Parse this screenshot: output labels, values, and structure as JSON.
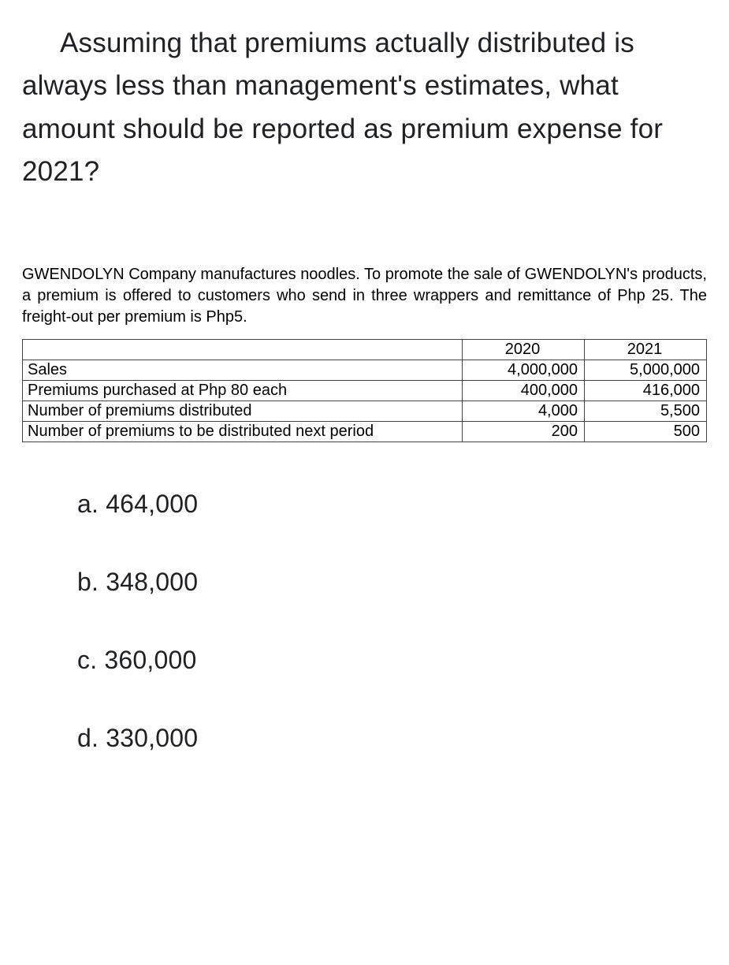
{
  "question_text": "Assuming that premiums actually distributed is always less than management's estimates, what amount should be reported as premium expense for 2021?",
  "context_text": "GWENDOLYN Company manufactures noodles. To promote the sale of GWENDOLYN's products, a premium is offered to customers who send in three wrappers and remittance of Php 25. The freight-out per premium is Php5.",
  "table": {
    "columns": [
      "",
      "2020",
      "2021"
    ],
    "rows": [
      {
        "label": "Sales",
        "y2020": "4,000,000",
        "y2021": "5,000,000"
      },
      {
        "label": "Premiums purchased at Php 80 each",
        "y2020": "400,000",
        "y2021": "416,000"
      },
      {
        "label": "Number of premiums distributed",
        "y2020": "4,000",
        "y2021": "5,500"
      },
      {
        "label": "Number of premiums to be distributed next period",
        "y2020": "200",
        "y2021": "500"
      }
    ]
  },
  "options": [
    {
      "letter": "a.",
      "value": "464,000"
    },
    {
      "letter": "b.",
      "value": "348,000"
    },
    {
      "letter": "c.",
      "value": "360,000"
    },
    {
      "letter": "d.",
      "value": "330,000"
    }
  ]
}
